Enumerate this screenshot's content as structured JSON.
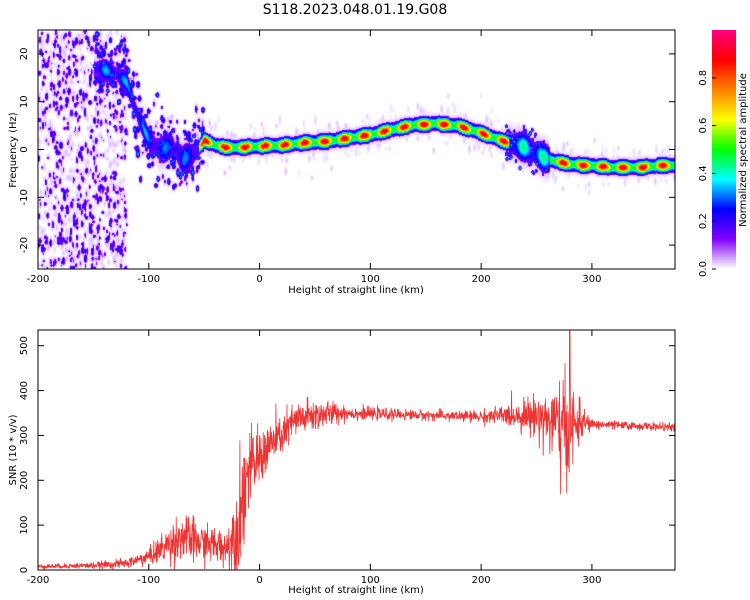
{
  "title": "S118.2023.048.01.19.G08",
  "colors": {
    "snr_line": "#ee3333",
    "axis": "#000000",
    "background": "#ffffff"
  },
  "chart_data": [
    {
      "type": "heatmap",
      "title": "S118.2023.048.01.19.G08",
      "xlabel": "Height of straight line (km)",
      "ylabel": "Frequency (Hz)",
      "xlim": [
        -200,
        375
      ],
      "ylim": [
        -25,
        25
      ],
      "x_ticks": [
        -200,
        -100,
        0,
        100,
        200,
        300
      ],
      "y_ticks": [
        -20,
        -10,
        0,
        10,
        20
      ],
      "colorbar": {
        "label": "Normalized spectral amplitude",
        "range": [
          0,
          1
        ],
        "ticks": [
          "0.0",
          "0.2",
          "0.4",
          "0.6",
          "0.8"
        ],
        "tick_values": [
          0,
          0.2,
          0.4,
          0.6,
          0.8
        ],
        "colormap": [
          "#ffffff",
          "#8000ff",
          "#0000ff",
          "#00ffff",
          "#00ff00",
          "#ffff00",
          "#ff8000",
          "#ff0000",
          "#ff0080"
        ]
      },
      "ridge": {
        "x": [
          -145,
          -130,
          -120,
          -110,
          -100,
          -90,
          -80,
          -70,
          -60,
          -50,
          -40,
          -30,
          -20,
          0,
          20,
          40,
          60,
          80,
          100,
          120,
          140,
          160,
          180,
          200,
          220,
          240,
          255,
          265,
          280,
          300,
          320,
          340,
          360,
          375
        ],
        "y": [
          17,
          16,
          14,
          7,
          2,
          0,
          1,
          -2,
          -1,
          2,
          1,
          0.5,
          0.5,
          0.8,
          1,
          1.5,
          1.8,
          2.5,
          3.2,
          4.3,
          5.3,
          5.5,
          5,
          3.5,
          1.8,
          0.5,
          -1.5,
          -2.3,
          -3,
          -3.3,
          -3.7,
          -3.7,
          -3.3,
          -3.2
        ]
      }
    },
    {
      "type": "line",
      "xlabel": "Height of straight line (km)",
      "ylabel": "SNR (10 * v/v)",
      "xlim": [
        -200,
        375
      ],
      "ylim": [
        0,
        535
      ],
      "x_ticks": [
        -200,
        -100,
        0,
        100,
        200,
        300
      ],
      "y_ticks": [
        0,
        100,
        200,
        300,
        400,
        500
      ],
      "envelope": {
        "x": [
          -200,
          -150,
          -120,
          -100,
          -80,
          -70,
          -60,
          -50,
          -40,
          -30,
          -20,
          -15,
          -10,
          0,
          10,
          20,
          30,
          40,
          50,
          60,
          70,
          80,
          100,
          150,
          200,
          230,
          250,
          260,
          270,
          275,
          280,
          285,
          290,
          300,
          330,
          375
        ],
        "mean": [
          8,
          10,
          15,
          30,
          60,
          75,
          65,
          60,
          55,
          50,
          90,
          170,
          220,
          250,
          280,
          300,
          330,
          340,
          345,
          348,
          350,
          350,
          348,
          345,
          342,
          345,
          345,
          335,
          320,
          310,
          310,
          320,
          330,
          325,
          322,
          318
        ],
        "amp": [
          5,
          8,
          12,
          20,
          50,
          60,
          55,
          45,
          45,
          45,
          120,
          150,
          90,
          70,
          60,
          50,
          45,
          45,
          40,
          35,
          25,
          18,
          15,
          12,
          15,
          30,
          50,
          80,
          110,
          130,
          120,
          80,
          40,
          12,
          10,
          10
        ]
      },
      "peak": {
        "x": 280,
        "y": 535
      }
    }
  ]
}
